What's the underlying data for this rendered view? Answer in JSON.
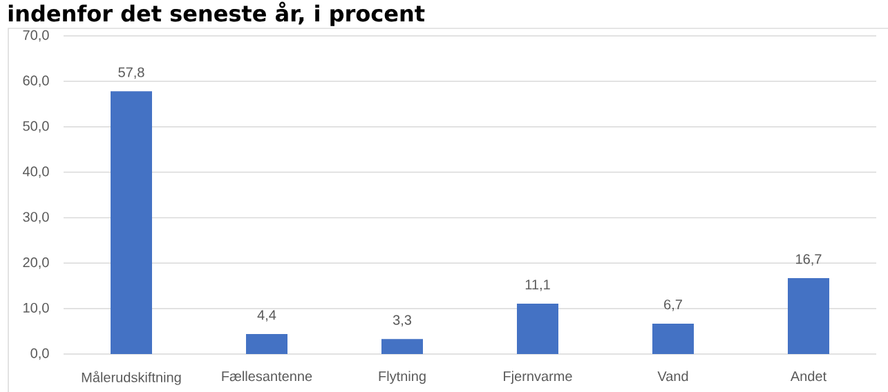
{
  "chart_data": {
    "type": "bar",
    "title": "indenfor det seneste år, i procent",
    "categories": [
      "Målerudskiftning",
      "Fællesantenne",
      "Flytning",
      "Fjernvarme",
      "Vand",
      "Andet"
    ],
    "values": [
      57.8,
      4.4,
      3.3,
      11.1,
      6.7,
      16.7
    ],
    "value_labels": [
      "57,8",
      "4,4",
      "3,3",
      "11,1",
      "6,7",
      "16,7"
    ],
    "color": "#4472c4",
    "ylim": [
      0,
      70
    ],
    "yticks": [
      {
        "value": 0,
        "label": "0,0"
      },
      {
        "value": 10,
        "label": "10,0"
      },
      {
        "value": 20,
        "label": "20,0"
      },
      {
        "value": 30,
        "label": "30,0"
      },
      {
        "value": 40,
        "label": "40,0"
      },
      {
        "value": 50,
        "label": "50,0"
      },
      {
        "value": 60,
        "label": "60,0"
      },
      {
        "value": 70,
        "label": "70,0"
      }
    ],
    "grid": "y"
  }
}
